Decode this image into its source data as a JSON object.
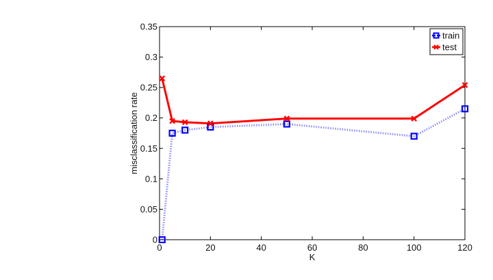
{
  "chart_data": {
    "type": "line",
    "title": "",
    "xlabel": "K",
    "ylabel": "misclassification rate",
    "xlim": [
      0,
      120
    ],
    "ylim": [
      0,
      0.35
    ],
    "xticks": [
      0,
      20,
      40,
      60,
      80,
      100,
      120
    ],
    "xtick_labels": [
      "0",
      "20",
      "40",
      "60",
      "80",
      "100",
      "120"
    ],
    "yticks": [
      0,
      0.05,
      0.1,
      0.15,
      0.2,
      0.25,
      0.3,
      0.35
    ],
    "ytick_labels": [
      "0",
      "0.05",
      "0.1",
      "0.15",
      "0.2",
      "0.25",
      "0.3",
      "0.35"
    ],
    "grid": false,
    "legend_position": "top-right",
    "x": [
      1,
      5,
      10,
      20,
      50,
      100,
      120
    ],
    "series": [
      {
        "name": "train",
        "values": [
          0.0,
          0.175,
          0.18,
          0.185,
          0.19,
          0.17,
          0.215
        ],
        "color": "#0000ff",
        "line_style": "dotted",
        "marker": "square"
      },
      {
        "name": "test",
        "values": [
          0.265,
          0.195,
          0.193,
          0.191,
          0.199,
          0.199,
          0.254
        ],
        "color": "#ff0000",
        "line_style": "solid",
        "marker": "x"
      }
    ]
  }
}
